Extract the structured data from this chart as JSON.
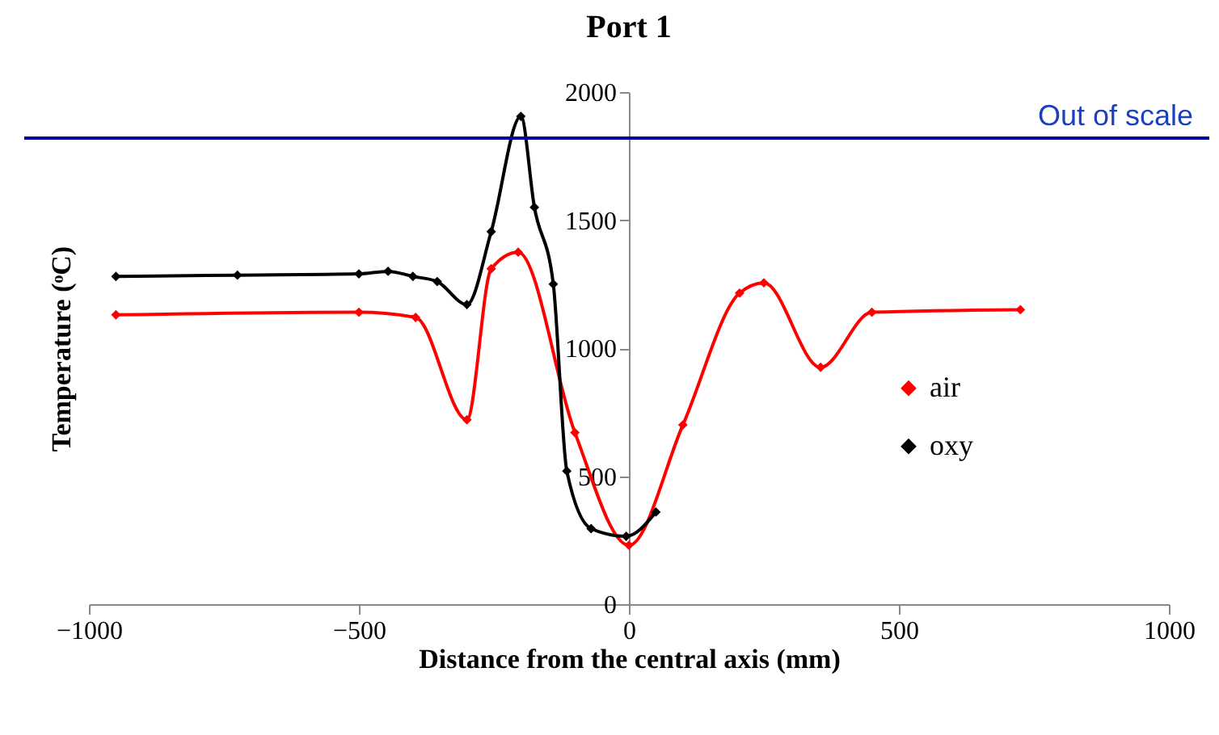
{
  "chart_data": {
    "type": "line",
    "title": "Port 1",
    "xlabel": "Distance from the central axis (mm)",
    "ylabel": "Temperature (ᵒC)",
    "xlim": [
      -1000,
      1000
    ],
    "xticks": [
      -1000,
      -500,
      0,
      500,
      1000
    ],
    "ylim": [
      0,
      2000
    ],
    "yticks": [
      0,
      500,
      1000,
      1500,
      2000
    ],
    "grid": false,
    "legend": "right",
    "marker": "diamond",
    "line_style": "solid",
    "ref_lines": [
      {
        "axis": "y",
        "value": 1820,
        "label": "Out of scale",
        "color": "#000099"
      }
    ],
    "series": [
      {
        "name": "air",
        "color": "#ff0000",
        "x": [
          -950,
          -500,
          -395,
          -300,
          -255,
          -205,
          -100,
          0,
          100,
          205,
          250,
          355,
          450,
          725
        ],
        "values": [
          1130,
          1140,
          1120,
          720,
          1310,
          1375,
          670,
          230,
          700,
          1215,
          1255,
          925,
          1140,
          1150
        ]
      },
      {
        "name": "oxy",
        "color": "#000000",
        "x": [
          -950,
          -725,
          -500,
          -446,
          -400,
          -355,
          -300,
          -255,
          -200,
          -175,
          -140,
          -115,
          -70,
          -5,
          50
        ],
        "values": [
          1280,
          1285,
          1290,
          1300,
          1280,
          1260,
          1170,
          1455,
          1905,
          1550,
          1250,
          520,
          295,
          265,
          360
        ]
      }
    ]
  }
}
